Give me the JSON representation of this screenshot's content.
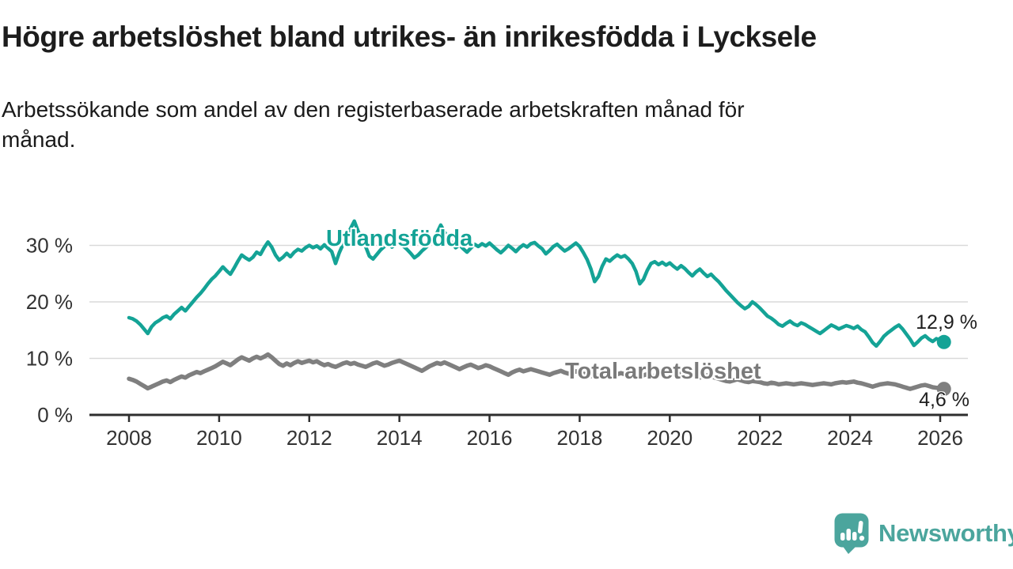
{
  "header": {
    "title": "Högre arbetslöshet bland utrikes- än inrikesfödda i Lycksele",
    "subtitle": "Arbetssökande som andel av den registerbaserade arbetskraften månad för\nmånad."
  },
  "branding": {
    "logo_text": "Newsworthy",
    "logo_icon": "bar-chart-speech-bubble-icon",
    "brand_color": "#4BA59D"
  },
  "chart_data": {
    "type": "line",
    "title": "Högre arbetslöshet bland utrikes- än inrikesfödda i Lycksele",
    "xlabel": "",
    "ylabel": "",
    "unit": "%",
    "grid": "horizontal-only",
    "x_axis": {
      "ticks": [
        2008,
        2010,
        2012,
        2014,
        2016,
        2018,
        2020,
        2022,
        2024,
        2026
      ],
      "frequency": "monthly",
      "start": "2008-01",
      "end": "2026-02"
    },
    "y_axis": {
      "tick_labels": [
        "0 %",
        "10 %",
        "20 %",
        "30 %"
      ],
      "tick_values": [
        0,
        10,
        20,
        30
      ],
      "range": [
        0,
        36
      ]
    },
    "series": [
      {
        "name": "Utlandsfödda",
        "color": "#14a396",
        "end_label": "12,9 %",
        "end_value": 12.9,
        "values": [
          17.2,
          17.0,
          16.6,
          16.0,
          15.2,
          14.4,
          15.6,
          16.3,
          16.7,
          17.2,
          17.5,
          17.0,
          17.8,
          18.4,
          19.0,
          18.4,
          19.2,
          20.0,
          20.8,
          21.5,
          22.3,
          23.2,
          24.0,
          24.6,
          25.4,
          26.2,
          25.5,
          24.9,
          26.0,
          27.2,
          28.3,
          27.8,
          27.4,
          27.9,
          28.8,
          28.4,
          29.6,
          30.6,
          29.7,
          28.3,
          27.4,
          27.9,
          28.6,
          28.0,
          28.8,
          29.3,
          29.0,
          29.6,
          30.0,
          29.6,
          29.9,
          29.4,
          30.1,
          29.5,
          28.9,
          26.8,
          28.7,
          30.2,
          31.5,
          33.0,
          34.3,
          32.5,
          31.0,
          29.8,
          28.1,
          27.6,
          28.4,
          29.2,
          29.8,
          30.4,
          29.7,
          30.2,
          30.6,
          29.9,
          29.3,
          28.6,
          27.8,
          28.3,
          29.0,
          29.6,
          30.2,
          31.0,
          32.2,
          33.6,
          32.4,
          31.2,
          30.4,
          29.6,
          30.1,
          29.4,
          28.8,
          29.5,
          30.2,
          29.8,
          30.3,
          29.9,
          30.4,
          29.8,
          29.2,
          28.7,
          29.3,
          30.0,
          29.5,
          28.9,
          29.6,
          30.1,
          29.7,
          30.3,
          30.5,
          29.9,
          29.4,
          28.5,
          29.1,
          29.8,
          30.2,
          29.6,
          29.0,
          29.4,
          29.9,
          30.4,
          29.8,
          28.7,
          27.5,
          25.8,
          23.6,
          24.5,
          26.3,
          27.6,
          27.2,
          27.8,
          28.3,
          27.9,
          28.2,
          27.6,
          26.8,
          25.4,
          23.2,
          24.0,
          25.6,
          26.8,
          27.1,
          26.6,
          27.0,
          26.5,
          26.9,
          26.3,
          25.8,
          26.4,
          25.9,
          25.2,
          24.6,
          25.3,
          25.8,
          25.1,
          24.5,
          24.9,
          24.2,
          23.6,
          22.8,
          22.0,
          21.3,
          20.6,
          19.9,
          19.3,
          18.8,
          19.2,
          20.0,
          19.5,
          18.9,
          18.2,
          17.5,
          17.1,
          16.6,
          16.0,
          15.7,
          16.2,
          16.6,
          16.1,
          15.8,
          16.3,
          16.0,
          15.6,
          15.2,
          14.8,
          14.4,
          14.9,
          15.4,
          15.9,
          15.6,
          15.2,
          15.5,
          15.8,
          15.6,
          15.3,
          15.7,
          15.1,
          14.7,
          13.8,
          12.8,
          12.2,
          13.0,
          13.9,
          14.5,
          15.0,
          15.5,
          15.9,
          15.2,
          14.3,
          13.4,
          12.3,
          12.9,
          13.6,
          14.0,
          13.4,
          13.0,
          13.5,
          13.2,
          12.9
        ]
      },
      {
        "name": "Total arbetslöshet",
        "color": "#7f7f7f",
        "end_label": "4,6 %",
        "end_value": 4.6,
        "values": [
          6.4,
          6.2,
          5.9,
          5.5,
          5.1,
          4.7,
          5.0,
          5.3,
          5.6,
          5.9,
          6.1,
          5.8,
          6.2,
          6.5,
          6.8,
          6.6,
          7.0,
          7.3,
          7.6,
          7.4,
          7.7,
          8.0,
          8.3,
          8.6,
          9.0,
          9.4,
          9.1,
          8.8,
          9.3,
          9.8,
          10.2,
          9.9,
          9.6,
          10.0,
          10.3,
          10.0,
          10.3,
          10.7,
          10.2,
          9.6,
          9.0,
          8.7,
          9.1,
          8.8,
          9.2,
          9.5,
          9.2,
          9.4,
          9.6,
          9.3,
          9.5,
          9.1,
          8.8,
          9.0,
          8.7,
          8.5,
          8.8,
          9.1,
          9.3,
          9.0,
          9.2,
          8.9,
          8.7,
          8.5,
          8.8,
          9.1,
          9.3,
          9.0,
          8.7,
          8.9,
          9.2,
          9.4,
          9.6,
          9.3,
          9.0,
          8.7,
          8.4,
          8.1,
          7.8,
          8.2,
          8.6,
          8.9,
          9.2,
          9.0,
          9.3,
          9.0,
          8.7,
          8.4,
          8.1,
          8.4,
          8.7,
          8.9,
          8.6,
          8.3,
          8.5,
          8.8,
          8.6,
          8.3,
          8.0,
          7.7,
          7.4,
          7.1,
          7.5,
          7.8,
          8.0,
          7.7,
          7.9,
          8.1,
          7.9,
          7.7,
          7.5,
          7.3,
          7.1,
          7.4,
          7.6,
          7.8,
          7.5,
          7.3,
          7.5,
          7.7,
          7.5,
          7.3,
          7.1,
          6.9,
          6.7,
          7.0,
          7.2,
          7.4,
          7.2,
          7.0,
          7.2,
          7.4,
          7.2,
          7.0,
          6.8,
          6.6,
          6.8,
          7.0,
          7.2,
          7.0,
          6.8,
          6.9,
          7.1,
          7.3,
          7.4,
          7.2,
          7.0,
          7.3,
          7.5,
          7.2,
          7.0,
          6.8,
          6.6,
          6.8,
          7.0,
          6.8,
          6.6,
          6.4,
          6.2,
          6.0,
          5.9,
          6.1,
          6.3,
          6.1,
          5.9,
          5.8,
          6.0,
          5.9,
          5.8,
          5.6,
          5.5,
          5.7,
          5.6,
          5.4,
          5.5,
          5.6,
          5.5,
          5.4,
          5.5,
          5.6,
          5.5,
          5.4,
          5.3,
          5.4,
          5.5,
          5.6,
          5.5,
          5.4,
          5.6,
          5.7,
          5.8,
          5.7,
          5.8,
          5.9,
          5.7,
          5.6,
          5.4,
          5.2,
          5.0,
          5.2,
          5.4,
          5.5,
          5.6,
          5.5,
          5.4,
          5.2,
          5.0,
          4.8,
          4.6,
          4.8,
          5.0,
          5.2,
          5.3,
          5.1,
          4.9,
          4.8,
          4.8,
          4.6
        ]
      }
    ]
  }
}
